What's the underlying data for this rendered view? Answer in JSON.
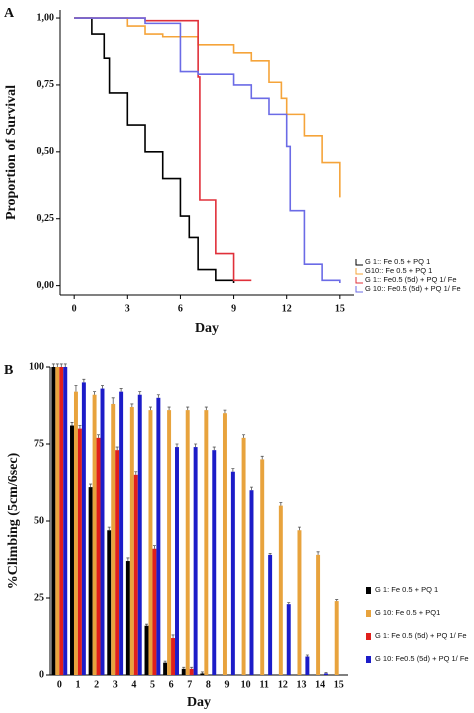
{
  "chart_data": [
    {
      "type": "step",
      "label": "A",
      "xlabel": "Day",
      "ylabel": "Proportion of Survival",
      "xlim": [
        -0.8,
        15.8
      ],
      "xticks": [
        0,
        3,
        6,
        9,
        12,
        15
      ],
      "ylim": [
        -0.035,
        1.03
      ],
      "yticks": [
        {
          "value": 0,
          "label": "0,00"
        },
        {
          "value": 0.25,
          "label": "0,25"
        },
        {
          "value": 0.5,
          "label": "0,50"
        },
        {
          "value": 0.75,
          "label": "0,75"
        },
        {
          "value": 1,
          "label": "1,00"
        }
      ],
      "series": [
        {
          "name": "G 1:: Fe 0.5 + PQ 1",
          "color": "#000000",
          "x": [
            0,
            1,
            1.7,
            2,
            3,
            4,
            5,
            6,
            6.5,
            7,
            8,
            9
          ],
          "values": [
            1,
            0.94,
            0.85,
            0.72,
            0.6,
            0.5,
            0.4,
            0.26,
            0.18,
            0.06,
            0.02,
            0.01
          ]
        },
        {
          "name": "G10:: Fe 0.5 + PQ 1",
          "color": "#f5a43a",
          "x": [
            0,
            3,
            4,
            5,
            7,
            9,
            10,
            11,
            11.7,
            12,
            13,
            14,
            15
          ],
          "values": [
            1,
            0.97,
            0.94,
            0.93,
            0.9,
            0.87,
            0.84,
            0.76,
            0.7,
            0.64,
            0.56,
            0.46,
            0.33
          ]
        },
        {
          "name": "G 1:: Fe0.5 (5d) + PQ 1/ Fe",
          "color": "#e0303a",
          "x": [
            0,
            4,
            7,
            7.1,
            8,
            9,
            10
          ],
          "values": [
            1,
            0.99,
            0.78,
            0.32,
            0.12,
            0.02,
            0.02
          ]
        },
        {
          "name": "G 10:: Fe0.5 (5d) + PQ 1/ Fe",
          "color": "#6b6be6",
          "x": [
            0,
            4,
            6,
            7,
            9,
            10,
            11,
            12,
            12.2,
            13,
            14,
            15
          ],
          "values": [
            1,
            0.98,
            0.8,
            0.79,
            0.75,
            0.7,
            0.64,
            0.52,
            0.28,
            0.08,
            0.02,
            0.01
          ]
        }
      ]
    },
    {
      "type": "bar",
      "label": "B",
      "xlabel": "Day",
      "ylabel": "%Climbing (5cm/6sec)",
      "categories": [
        "0",
        "1",
        "2",
        "3",
        "4",
        "5",
        "6",
        "7",
        "8",
        "9",
        "10",
        "11",
        "12",
        "13",
        "14",
        "15"
      ],
      "ylim": [
        0,
        100
      ],
      "yticks": [
        0,
        25,
        50,
        75,
        100
      ],
      "series": [
        {
          "name": "G 1: Fe 0.5 + PQ 1",
          "color": "#000000",
          "values": [
            100,
            81,
            61,
            47,
            37,
            16,
            4,
            2,
            0.5,
            null,
            null,
            null,
            null,
            null,
            null,
            null
          ],
          "errors": [
            1,
            1,
            1,
            1,
            1,
            0.5,
            0.5,
            0.5,
            0.5,
            null,
            null,
            null,
            null,
            null,
            null,
            null
          ]
        },
        {
          "name": "G 10: Fe 0.5 + PQ1",
          "color": "#e8a33d",
          "values": [
            100,
            92,
            91,
            88,
            87,
            86,
            86,
            86,
            86,
            85,
            77,
            70,
            55,
            47,
            39,
            24
          ],
          "errors": [
            1,
            2,
            1,
            2,
            1,
            1,
            1,
            1,
            1,
            1,
            1,
            1,
            1,
            1,
            1,
            0.5
          ]
        },
        {
          "name": "G 1: Fe 0.5 (5d) + PQ 1/ Fe",
          "color": "#e0201b",
          "values": [
            100,
            80,
            77,
            73,
            65,
            41,
            12,
            2,
            null,
            null,
            null,
            null,
            null,
            null,
            null,
            null
          ],
          "errors": [
            1,
            1,
            1,
            1,
            1,
            1,
            1,
            0.5,
            null,
            null,
            null,
            null,
            null,
            null,
            null,
            null
          ]
        },
        {
          "name": "G 10: Fe0.5 (5d) + PQ 1/ Fe",
          "color": "#1c1cc8",
          "values": [
            100,
            95,
            93,
            92,
            91,
            90,
            74,
            74,
            73,
            66,
            60,
            39,
            23,
            6,
            0.5,
            null
          ],
          "errors": [
            1,
            1,
            1,
            1,
            1,
            1,
            1,
            1,
            1,
            1,
            1,
            0.5,
            0.5,
            0.5,
            0.3,
            null
          ]
        }
      ]
    }
  ]
}
